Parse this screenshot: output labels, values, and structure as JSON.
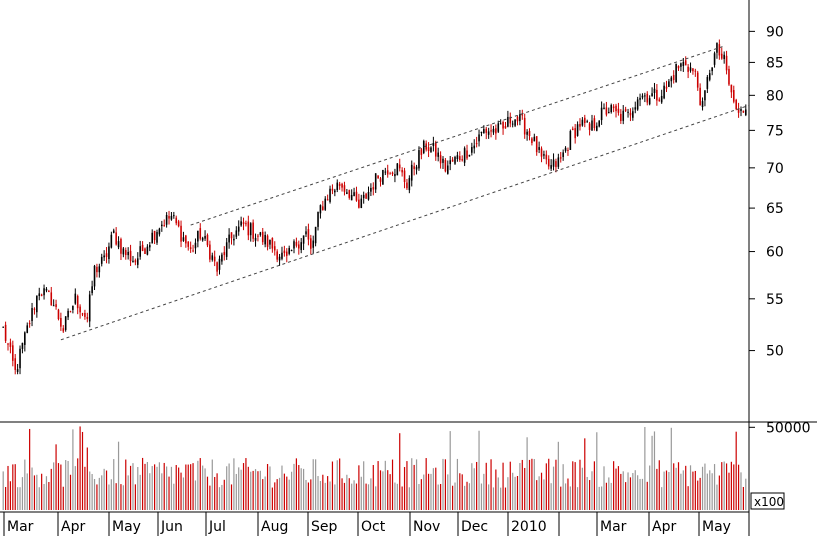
{
  "chart_data": {
    "type": "ohlc_candlestick_with_volume",
    "price_axis": {
      "scale": "log",
      "ticks": [
        50,
        55,
        60,
        65,
        70,
        75,
        80,
        85,
        90
      ],
      "tick_labels": [
        "50",
        "55",
        "60",
        "65",
        "70",
        "75",
        "80",
        "85",
        "90"
      ],
      "range": [
        44,
        95
      ]
    },
    "volume_axis": {
      "ticks": [
        50000
      ],
      "tick_labels": [
        "50000"
      ],
      "unit_label": "x100",
      "range": [
        0,
        52000
      ]
    },
    "x_axis": {
      "month_labels": [
        "Mar",
        "Apr",
        "May",
        "Jun",
        "Jul",
        "Aug",
        "Sep",
        "Oct",
        "Nov",
        "Dec",
        "2010",
        "",
        "Mar",
        "Apr",
        "May"
      ],
      "bars": 310
    },
    "trend_channel": {
      "style": "dotted",
      "upper": {
        "from": {
          "bar": 78,
          "price": 63.0
        },
        "to": {
          "bar": 300,
          "price": 87.6
        }
      },
      "lower": {
        "from": {
          "bar": 24,
          "price": 51.0
        },
        "to": {
          "bar": 310,
          "price": 78.5
        }
      }
    },
    "price_anchors": [
      [
        0,
        52
      ],
      [
        5,
        48
      ],
      [
        10,
        52
      ],
      [
        15,
        56
      ],
      [
        20,
        55
      ],
      [
        25,
        52
      ],
      [
        30,
        55
      ],
      [
        35,
        53
      ],
      [
        38,
        58
      ],
      [
        42,
        59
      ],
      [
        46,
        62
      ],
      [
        50,
        60
      ],
      [
        55,
        59
      ],
      [
        60,
        61
      ],
      [
        65,
        63
      ],
      [
        70,
        64
      ],
      [
        74,
        62
      ],
      [
        78,
        60
      ],
      [
        82,
        62
      ],
      [
        86,
        60
      ],
      [
        89,
        58
      ],
      [
        92,
        60
      ],
      [
        96,
        62
      ],
      [
        100,
        63
      ],
      [
        105,
        62
      ],
      [
        110,
        61
      ],
      [
        114,
        60
      ],
      [
        118,
        59
      ],
      [
        122,
        61
      ],
      [
        126,
        62
      ],
      [
        128,
        60
      ],
      [
        132,
        65
      ],
      [
        136,
        67
      ],
      [
        140,
        68
      ],
      [
        144,
        67
      ],
      [
        148,
        65
      ],
      [
        152,
        67
      ],
      [
        156,
        69
      ],
      [
        160,
        70
      ],
      [
        164,
        70
      ],
      [
        168,
        68
      ],
      [
        172,
        71
      ],
      [
        176,
        73
      ],
      [
        180,
        72
      ],
      [
        184,
        70
      ],
      [
        188,
        71
      ],
      [
        192,
        72
      ],
      [
        196,
        73
      ],
      [
        200,
        75
      ],
      [
        204,
        75
      ],
      [
        208,
        75
      ],
      [
        212,
        77
      ],
      [
        216,
        76
      ],
      [
        220,
        74
      ],
      [
        224,
        71
      ],
      [
        228,
        70
      ],
      [
        232,
        71
      ],
      [
        236,
        74
      ],
      [
        240,
        76
      ],
      [
        244,
        75
      ],
      [
        248,
        77
      ],
      [
        252,
        78
      ],
      [
        256,
        77
      ],
      [
        260,
        77
      ],
      [
        264,
        80
      ],
      [
        268,
        80
      ],
      [
        272,
        80
      ],
      [
        276,
        81
      ],
      [
        280,
        84
      ],
      [
        284,
        85
      ],
      [
        288,
        83
      ],
      [
        291,
        78
      ],
      [
        294,
        84
      ],
      [
        297,
        87
      ],
      [
        300,
        85
      ],
      [
        303,
        80
      ],
      [
        306,
        77
      ],
      [
        310,
        79
      ]
    ],
    "volume_level": 30000,
    "colors": {
      "up": "#000000",
      "down": "#cc0000",
      "volume_down": "#cc0000",
      "volume_up": "#999999",
      "channel": "#444444"
    }
  }
}
